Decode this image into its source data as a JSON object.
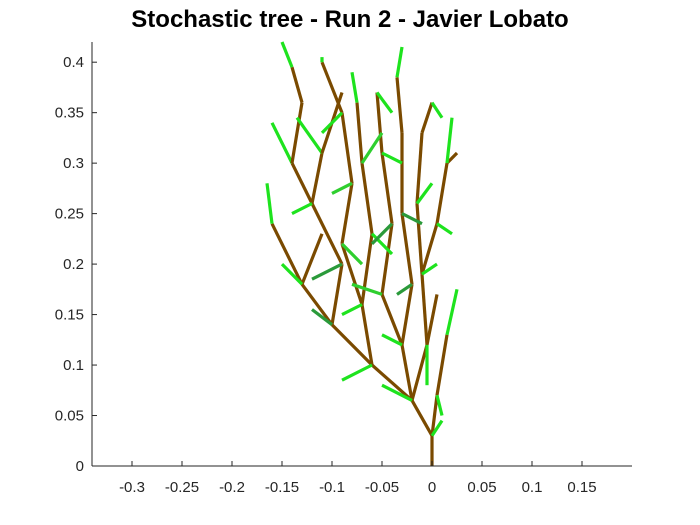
{
  "chart_data": {
    "type": "line",
    "title": "Stochastic tree - Run 2 - Javier Lobato",
    "xlabel": "",
    "ylabel": "",
    "xlim": [
      -0.34,
      0.2
    ],
    "ylim": [
      0,
      0.42
    ],
    "xticks": [
      "-0.3",
      "-0.25",
      "-0.2",
      "-0.15",
      "-0.1",
      "-0.05",
      "0",
      "0.05",
      "0.1",
      "0.15"
    ],
    "xtick_values": [
      -0.3,
      -0.25,
      -0.2,
      -0.15,
      -0.1,
      -0.05,
      0,
      0.05,
      0.1,
      0.15
    ],
    "yticks": [
      "0",
      "0.05",
      "0.1",
      "0.15",
      "0.2",
      "0.25",
      "0.3",
      "0.35",
      "0.4"
    ],
    "ytick_values": [
      0,
      0.05,
      0.1,
      0.15,
      0.2,
      0.25,
      0.3,
      0.35,
      0.4
    ],
    "grid": false,
    "colors": {
      "branch": "#7a4a00",
      "leaf_bright": "#1ee31e",
      "leaf_mid": "#2fcf2f",
      "leaf_dark": "#2a9a3a"
    },
    "segments": [
      {
        "x": [
          0,
          0
        ],
        "y": [
          0,
          0.03
        ],
        "kind": "branch"
      },
      {
        "x": [
          0,
          -0.02
        ],
        "y": [
          0.03,
          0.065
        ],
        "kind": "branch"
      },
      {
        "x": [
          0,
          0.005
        ],
        "y": [
          0.03,
          0.07
        ],
        "kind": "branch"
      },
      {
        "x": [
          -0.02,
          -0.06
        ],
        "y": [
          0.065,
          0.1
        ],
        "kind": "branch"
      },
      {
        "x": [
          -0.02,
          -0.03
        ],
        "y": [
          0.065,
          0.12
        ],
        "kind": "branch"
      },
      {
        "x": [
          -0.02,
          -0.005
        ],
        "y": [
          0.065,
          0.12
        ],
        "kind": "branch"
      },
      {
        "x": [
          0.005,
          0.015
        ],
        "y": [
          0.07,
          0.13
        ],
        "kind": "branch"
      },
      {
        "x": [
          0.015,
          0.025
        ],
        "y": [
          0.13,
          0.175
        ],
        "kind": "leaf_bright"
      },
      {
        "x": [
          -0.06,
          -0.1
        ],
        "y": [
          0.1,
          0.14
        ],
        "kind": "branch"
      },
      {
        "x": [
          -0.06,
          -0.07
        ],
        "y": [
          0.1,
          0.16
        ],
        "kind": "branch"
      },
      {
        "x": [
          -0.03,
          -0.05
        ],
        "y": [
          0.12,
          0.17
        ],
        "kind": "branch"
      },
      {
        "x": [
          -0.03,
          -0.02
        ],
        "y": [
          0.12,
          0.18
        ],
        "kind": "branch"
      },
      {
        "x": [
          -0.005,
          -0.01
        ],
        "y": [
          0.12,
          0.19
        ],
        "kind": "branch"
      },
      {
        "x": [
          -0.005,
          0.005
        ],
        "y": [
          0.12,
          0.17
        ],
        "kind": "branch"
      },
      {
        "x": [
          -0.1,
          -0.13
        ],
        "y": [
          0.14,
          0.18
        ],
        "kind": "branch"
      },
      {
        "x": [
          -0.1,
          -0.09
        ],
        "y": [
          0.14,
          0.2
        ],
        "kind": "branch"
      },
      {
        "x": [
          -0.07,
          -0.09
        ],
        "y": [
          0.16,
          0.22
        ],
        "kind": "branch"
      },
      {
        "x": [
          -0.07,
          -0.06
        ],
        "y": [
          0.16,
          0.23
        ],
        "kind": "branch"
      },
      {
        "x": [
          -0.05,
          -0.04
        ],
        "y": [
          0.17,
          0.24
        ],
        "kind": "branch"
      },
      {
        "x": [
          -0.02,
          -0.03
        ],
        "y": [
          0.18,
          0.25
        ],
        "kind": "branch"
      },
      {
        "x": [
          -0.01,
          -0.015
        ],
        "y": [
          0.19,
          0.26
        ],
        "kind": "branch"
      },
      {
        "x": [
          -0.01,
          0.005
        ],
        "y": [
          0.19,
          0.24
        ],
        "kind": "branch"
      },
      {
        "x": [
          0.005,
          0.015
        ],
        "y": [
          0.24,
          0.3
        ],
        "kind": "branch"
      },
      {
        "x": [
          0.005,
          0.02
        ],
        "y": [
          0.24,
          0.23
        ],
        "kind": "leaf_bright"
      },
      {
        "x": [
          0.015,
          0.025
        ],
        "y": [
          0.3,
          0.31
        ],
        "kind": "branch"
      },
      {
        "x": [
          0.015,
          0.02
        ],
        "y": [
          0.3,
          0.345
        ],
        "kind": "leaf_bright"
      },
      {
        "x": [
          -0.13,
          -0.16
        ],
        "y": [
          0.18,
          0.24
        ],
        "kind": "branch"
      },
      {
        "x": [
          -0.13,
          -0.11
        ],
        "y": [
          0.18,
          0.23
        ],
        "kind": "branch"
      },
      {
        "x": [
          -0.09,
          -0.12
        ],
        "y": [
          0.2,
          0.26
        ],
        "kind": "branch"
      },
      {
        "x": [
          -0.09,
          -0.08
        ],
        "y": [
          0.22,
          0.28
        ],
        "kind": "branch"
      },
      {
        "x": [
          -0.06,
          -0.07
        ],
        "y": [
          0.23,
          0.3
        ],
        "kind": "branch"
      },
      {
        "x": [
          -0.04,
          -0.05
        ],
        "y": [
          0.24,
          0.31
        ],
        "kind": "branch"
      },
      {
        "x": [
          -0.03,
          -0.03
        ],
        "y": [
          0.25,
          0.33
        ],
        "kind": "branch"
      },
      {
        "x": [
          -0.015,
          -0.01
        ],
        "y": [
          0.26,
          0.33
        ],
        "kind": "branch"
      },
      {
        "x": [
          -0.16,
          -0.165
        ],
        "y": [
          0.24,
          0.28
        ],
        "kind": "leaf_bright"
      },
      {
        "x": [
          -0.12,
          -0.14
        ],
        "y": [
          0.26,
          0.3
        ],
        "kind": "branch"
      },
      {
        "x": [
          -0.12,
          -0.11
        ],
        "y": [
          0.26,
          0.31
        ],
        "kind": "branch"
      },
      {
        "x": [
          -0.14,
          -0.16
        ],
        "y": [
          0.3,
          0.34
        ],
        "kind": "leaf_bright"
      },
      {
        "x": [
          -0.14,
          -0.13
        ],
        "y": [
          0.3,
          0.36
        ],
        "kind": "branch"
      },
      {
        "x": [
          -0.13,
          -0.14
        ],
        "y": [
          0.36,
          0.395
        ],
        "kind": "branch"
      },
      {
        "x": [
          -0.14,
          -0.15
        ],
        "y": [
          0.395,
          0.42
        ],
        "kind": "leaf_bright"
      },
      {
        "x": [
          -0.08,
          -0.09
        ],
        "y": [
          0.28,
          0.35
        ],
        "kind": "branch"
      },
      {
        "x": [
          -0.09,
          -0.11
        ],
        "y": [
          0.35,
          0.4
        ],
        "kind": "branch"
      },
      {
        "x": [
          -0.11,
          -0.11
        ],
        "y": [
          0.4,
          0.405
        ],
        "kind": "leaf_bright"
      },
      {
        "x": [
          -0.07,
          -0.075
        ],
        "y": [
          0.3,
          0.36
        ],
        "kind": "branch"
      },
      {
        "x": [
          -0.075,
          -0.08
        ],
        "y": [
          0.36,
          0.39
        ],
        "kind": "leaf_bright"
      },
      {
        "x": [
          -0.05,
          -0.055
        ],
        "y": [
          0.31,
          0.37
        ],
        "kind": "branch"
      },
      {
        "x": [
          -0.03,
          -0.035
        ],
        "y": [
          0.33,
          0.385
        ],
        "kind": "branch"
      },
      {
        "x": [
          -0.035,
          -0.03
        ],
        "y": [
          0.385,
          0.415
        ],
        "kind": "leaf_bright"
      },
      {
        "x": [
          -0.01,
          0.0
        ],
        "y": [
          0.33,
          0.36
        ],
        "kind": "branch"
      },
      {
        "x": [
          0.0,
          0.01
        ],
        "y": [
          0.36,
          0.345
        ],
        "kind": "leaf_bright"
      },
      {
        "x": [
          -0.11,
          -0.135
        ],
        "y": [
          0.31,
          0.345
        ],
        "kind": "leaf_bright"
      },
      {
        "x": [
          -0.11,
          -0.09
        ],
        "y": [
          0.31,
          0.37
        ],
        "kind": "branch"
      },
      {
        "x": [
          -0.06,
          -0.09
        ],
        "y": [
          0.1,
          0.085
        ],
        "kind": "leaf_bright"
      },
      {
        "x": [
          -0.02,
          -0.05
        ],
        "y": [
          0.065,
          0.08
        ],
        "kind": "leaf_bright"
      },
      {
        "x": [
          0.005,
          0.01
        ],
        "y": [
          0.07,
          0.05
        ],
        "kind": "leaf_bright"
      },
      {
        "x": [
          -0.005,
          -0.005
        ],
        "y": [
          0.12,
          0.08
        ],
        "kind": "leaf_bright"
      },
      {
        "x": [
          -0.1,
          -0.12
        ],
        "y": [
          0.14,
          0.155
        ],
        "kind": "leaf_dark"
      },
      {
        "x": [
          -0.05,
          -0.08
        ],
        "y": [
          0.17,
          0.18
        ],
        "kind": "leaf_mid"
      },
      {
        "x": [
          -0.09,
          -0.12
        ],
        "y": [
          0.2,
          0.185
        ],
        "kind": "leaf_dark"
      },
      {
        "x": [
          -0.06,
          -0.04
        ],
        "y": [
          0.23,
          0.21
        ],
        "kind": "leaf_bright"
      },
      {
        "x": [
          -0.08,
          -0.1
        ],
        "y": [
          0.28,
          0.27
        ],
        "kind": "leaf_mid"
      },
      {
        "x": [
          -0.05,
          -0.03
        ],
        "y": [
          0.31,
          0.3
        ],
        "kind": "leaf_bright"
      },
      {
        "x": [
          -0.03,
          -0.01
        ],
        "y": [
          0.25,
          0.24
        ],
        "kind": "leaf_dark"
      },
      {
        "x": [
          -0.015,
          0.0
        ],
        "y": [
          0.26,
          0.28
        ],
        "kind": "leaf_bright"
      },
      {
        "x": [
          -0.07,
          -0.05
        ],
        "y": [
          0.3,
          0.33
        ],
        "kind": "leaf_mid"
      },
      {
        "x": [
          -0.12,
          -0.14
        ],
        "y": [
          0.26,
          0.25
        ],
        "kind": "leaf_bright"
      },
      {
        "x": [
          -0.13,
          -0.15
        ],
        "y": [
          0.18,
          0.2
        ],
        "kind": "leaf_bright"
      },
      {
        "x": [
          -0.02,
          -0.035
        ],
        "y": [
          0.18,
          0.17
        ],
        "kind": "leaf_dark"
      },
      {
        "x": [
          -0.01,
          0.005
        ],
        "y": [
          0.19,
          0.2
        ],
        "kind": "leaf_bright"
      },
      {
        "x": [
          -0.03,
          -0.05
        ],
        "y": [
          0.12,
          0.13
        ],
        "kind": "leaf_bright"
      },
      {
        "x": [
          -0.07,
          -0.09
        ],
        "y": [
          0.16,
          0.15
        ],
        "kind": "leaf_bright"
      },
      {
        "x": [
          -0.04,
          -0.06
        ],
        "y": [
          0.24,
          0.22
        ],
        "kind": "leaf_dark"
      },
      {
        "x": [
          -0.09,
          -0.11
        ],
        "y": [
          0.35,
          0.33
        ],
        "kind": "leaf_bright"
      },
      {
        "x": [
          -0.055,
          -0.04
        ],
        "y": [
          0.37,
          0.35
        ],
        "kind": "leaf_bright"
      },
      {
        "x": [
          -0.09,
          -0.07
        ],
        "y": [
          0.22,
          0.2
        ],
        "kind": "leaf_mid"
      },
      {
        "x": [
          0.0,
          0.01
        ],
        "y": [
          0.03,
          0.045
        ],
        "kind": "leaf_bright"
      }
    ]
  }
}
